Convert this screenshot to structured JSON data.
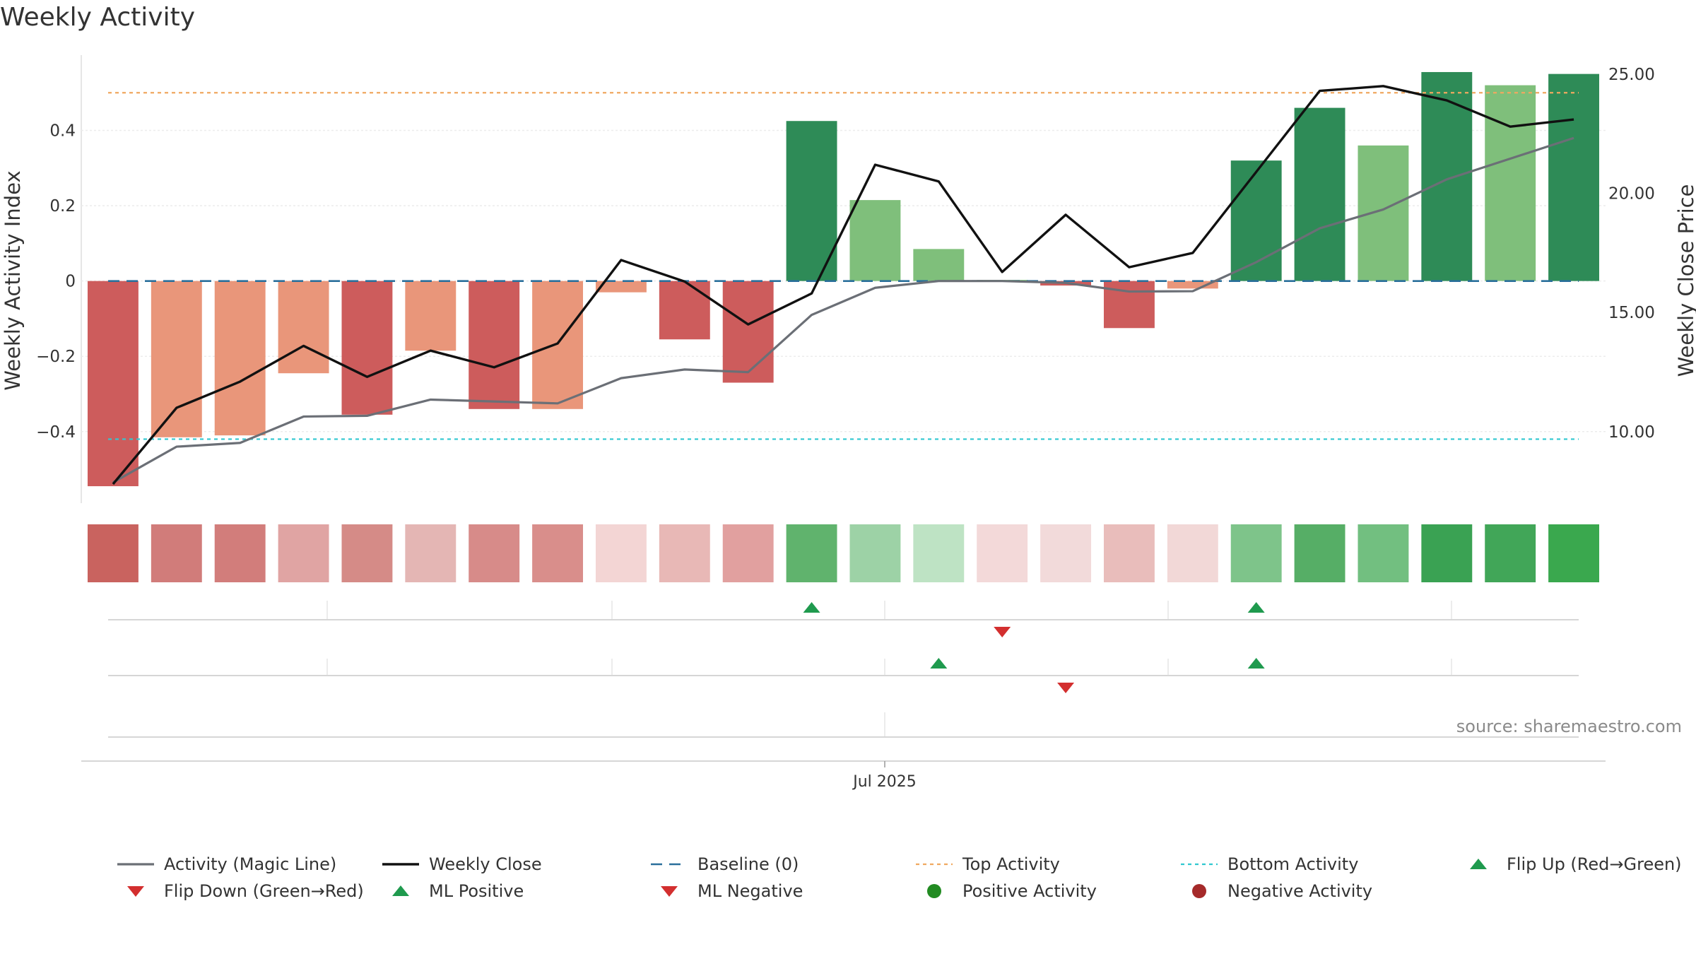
{
  "title": "Weekly Activity",
  "source": "source: sharemaestro.com",
  "colors": {
    "strong_red": "#cd5c5c",
    "light_red": "#e9967a",
    "strong_green": "#2e8b57",
    "light_green": "#7fbf7b",
    "magic_line": "#6b6f76",
    "close_line": "#111111",
    "baseline": "#2a6f9b",
    "top_line": "#f0a860",
    "bottom_line": "#30c8d0",
    "flip_up": "#1f9a4e",
    "flip_down": "#d32f2f",
    "positive_dot": "#228b22",
    "negative_dot": "#a52a2a"
  },
  "chart_data": {
    "type": "bar",
    "title": "Weekly Activity",
    "xlabel": "",
    "ylabel_left": "Weekly Activity Index",
    "ylabel_right": "Weekly Close Price",
    "x_tick_label": "Jul 2025",
    "x_tick_index": 12.5,
    "ylim_left": [
      -0.59,
      0.6
    ],
    "ylim_right": [
      7.0,
      25.8
    ],
    "yticks_left": [
      0.4,
      0.2,
      0,
      -0.2,
      -0.4
    ],
    "yticks_left_labels": [
      "0.4",
      "0.2",
      "0",
      "−0.2",
      "−0.4"
    ],
    "yticks_right": [
      25,
      20,
      15,
      10
    ],
    "yticks_right_labels": [
      "25.00",
      "20.00",
      "15.00",
      "10.00"
    ],
    "grid": true,
    "legend_position": "bottom",
    "weeks": 24,
    "activity": [
      -0.545,
      -0.415,
      -0.41,
      -0.245,
      -0.355,
      -0.185,
      -0.34,
      -0.34,
      -0.03,
      -0.155,
      -0.27,
      0.425,
      0.215,
      0.085,
      0.003,
      -0.012,
      -0.125,
      -0.02,
      0.32,
      0.46,
      0.36,
      0.555,
      0.52,
      0.55
    ],
    "activity_tone": [
      "strong",
      "light",
      "light",
      "light",
      "strong",
      "light",
      "strong",
      "light",
      "light",
      "strong",
      "strong",
      "strong",
      "light",
      "light",
      "light",
      "strong",
      "strong",
      "light",
      "strong",
      "strong",
      "light",
      "strong",
      "light",
      "strong"
    ],
    "magic_line": [
      -0.535,
      -0.44,
      -0.43,
      -0.36,
      -0.358,
      -0.315,
      -0.32,
      -0.325,
      -0.258,
      -0.235,
      -0.242,
      -0.09,
      -0.018,
      0.0,
      0.0,
      -0.005,
      -0.028,
      -0.027,
      0.05,
      0.14,
      0.19,
      0.27,
      0.325,
      0.38
    ],
    "weekly_close": [
      7.8,
      11.0,
      12.1,
      13.6,
      12.3,
      13.4,
      12.7,
      13.7,
      17.2,
      16.3,
      14.5,
      15.8,
      21.2,
      20.5,
      16.7,
      19.1,
      16.9,
      17.5,
      20.9,
      24.3,
      24.5,
      23.9,
      22.8,
      23.1
    ],
    "baseline": 0,
    "top_activity": 0.5,
    "bottom_activity": -0.42,
    "heat_strip": [
      "#c9635f",
      "#d17c7a",
      "#d27d7b",
      "#e0a4a3",
      "#d58b87",
      "#e4b6b4",
      "#d78b89",
      "#d98e8b",
      "#f3d5d4",
      "#e8b8b6",
      "#e1a09f",
      "#60b36d",
      "#9dd2a6",
      "#bee3c4",
      "#f3d9d9",
      "#f2dada",
      "#e9bdbb",
      "#f2d8d7",
      "#7ec48a",
      "#56ae66",
      "#72bf80",
      "#3aa253",
      "#41a658",
      "#3aa84e"
    ],
    "flip_rows": [
      {
        "up": [
          11,
          18
        ],
        "down": [
          14
        ]
      },
      {
        "up": [
          13,
          18
        ],
        "down": [
          15
        ]
      },
      {
        "up": [],
        "down": []
      }
    ]
  },
  "legend": [
    {
      "label": "Activity (Magic Line)",
      "symbol": "line-solid-grey"
    },
    {
      "label": "Weekly Close",
      "symbol": "line-solid-black"
    },
    {
      "label": "Baseline (0)",
      "symbol": "line-dashed-blue"
    },
    {
      "label": "Top Activity",
      "symbol": "line-dotted-orange"
    },
    {
      "label": "Bottom Activity",
      "symbol": "line-dotted-cyan"
    },
    {
      "label": "Flip Up (Red→Green)",
      "symbol": "triangle-up-green"
    },
    {
      "label": "Flip Down (Green→Red)",
      "symbol": "triangle-down-red"
    },
    {
      "label": "ML Positive",
      "symbol": "triangle-up-green"
    },
    {
      "label": "ML Negative",
      "symbol": "triangle-down-red"
    },
    {
      "label": "Positive Activity",
      "symbol": "dot-green"
    },
    {
      "label": "Negative Activity",
      "symbol": "dot-darkred"
    }
  ]
}
